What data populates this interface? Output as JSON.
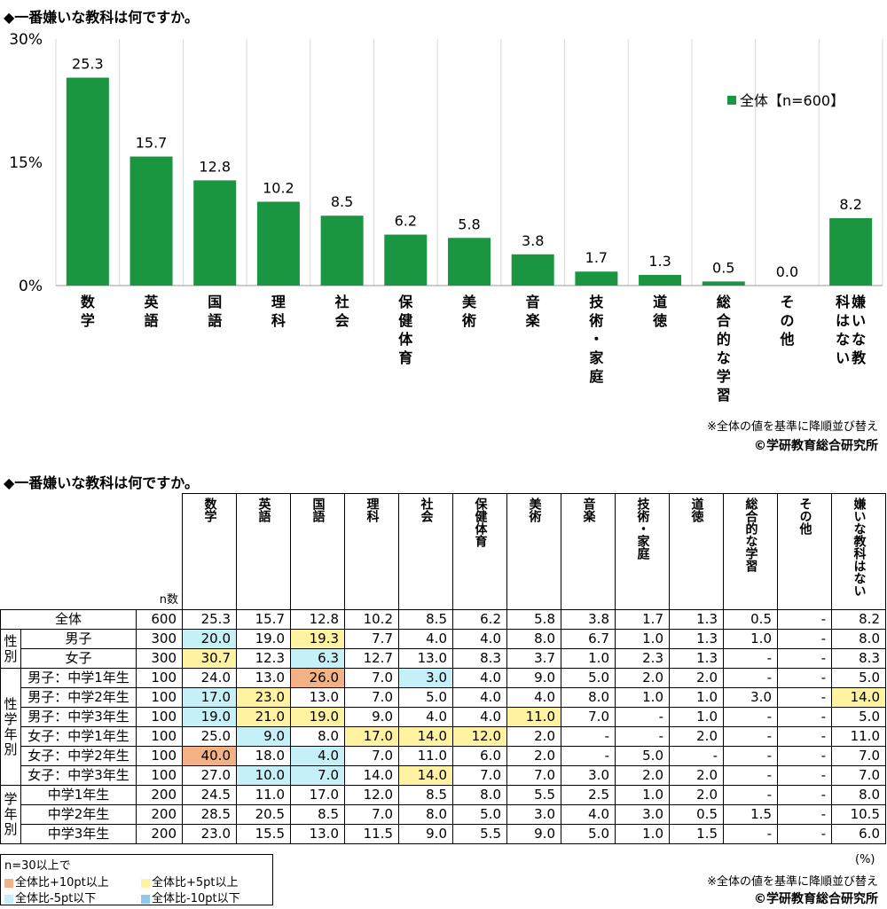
{
  "title1": "◆一番嫌いな教科は何ですか。",
  "title2": "◆一番嫌いな教科は何ですか。",
  "sort_note": "※全体の値を基準に降順並び替え",
  "copyright": "©学研教育総合研究所",
  "percent_unit": "(%)",
  "chart_data": {
    "type": "bar",
    "categories": [
      "数学",
      "英語",
      "国語",
      "理科",
      "社会",
      "保健体育",
      "美術",
      "音楽",
      "技術・家庭",
      "道徳",
      "総合的な学習",
      "その他",
      "嫌いな教科はない"
    ],
    "series": [
      {
        "name": "全体【n=600】",
        "values": [
          25.3,
          15.7,
          12.8,
          10.2,
          8.5,
          6.2,
          5.8,
          3.8,
          1.7,
          1.3,
          0.5,
          0.0,
          8.2
        ],
        "color": "#1a9641"
      }
    ],
    "value_labels": [
      "25.3",
      "15.7",
      "12.8",
      "10.2",
      "8.5",
      "6.2",
      "5.8",
      "3.8",
      "1.7",
      "1.3",
      "0.5",
      "0.0",
      "8.2"
    ],
    "yticks": [
      "0%",
      "15%",
      "30%"
    ],
    "ylim": [
      0,
      30
    ],
    "grid": "vertical separators",
    "legend": "top-right"
  },
  "table": {
    "n_header": "n数",
    "columns": [
      "数学",
      "英語",
      "国語",
      "理科",
      "社会",
      "保健体育",
      "美術",
      "音楽",
      "技術・家庭",
      "道徳",
      "総合的な学習",
      "その他",
      "嫌いな教科はない"
    ],
    "groups": [
      {
        "label": "",
        "rows": [
          {
            "label": "全体",
            "n": "600",
            "cells": [
              "25.3",
              "15.7",
              "12.8",
              "10.2",
              "8.5",
              "6.2",
              "5.8",
              "3.8",
              "1.7",
              "1.3",
              "0.5",
              "-",
              "8.2"
            ],
            "marks": [
              "",
              "",
              "",
              "",
              "",
              "",
              "",
              "",
              "",
              "",
              "",
              "",
              ""
            ]
          }
        ]
      },
      {
        "label": "性別",
        "rows": [
          {
            "label": "男子",
            "n": "300",
            "cells": [
              "20.0",
              "19.0",
              "19.3",
              "7.7",
              "4.0",
              "4.0",
              "8.0",
              "6.7",
              "1.0",
              "1.3",
              "1.0",
              "-",
              "8.0"
            ],
            "marks": [
              "lo5",
              "",
              "hi5",
              "",
              "",
              "",
              "",
              "",
              "",
              "",
              "",
              "",
              ""
            ]
          },
          {
            "label": "女子",
            "n": "300",
            "cells": [
              "30.7",
              "12.3",
              "6.3",
              "12.7",
              "13.0",
              "8.3",
              "3.7",
              "1.0",
              "2.3",
              "1.3",
              "-",
              "-",
              "8.3"
            ],
            "marks": [
              "hi5",
              "",
              "lo5",
              "",
              "",
              "",
              "",
              "",
              "",
              "",
              "",
              "",
              ""
            ]
          }
        ]
      },
      {
        "label": "性学年別",
        "rows": [
          {
            "label": "男子：中学1年生",
            "n": "100",
            "cells": [
              "24.0",
              "13.0",
              "26.0",
              "7.0",
              "3.0",
              "4.0",
              "9.0",
              "5.0",
              "2.0",
              "2.0",
              "-",
              "-",
              "5.0"
            ],
            "marks": [
              "",
              "",
              "hi10",
              "",
              "lo5",
              "",
              "",
              "",
              "",
              "",
              "",
              "",
              ""
            ]
          },
          {
            "label": "男子：中学2年生",
            "n": "100",
            "cells": [
              "17.0",
              "23.0",
              "13.0",
              "7.0",
              "5.0",
              "4.0",
              "4.0",
              "8.0",
              "1.0",
              "1.0",
              "3.0",
              "-",
              "14.0"
            ],
            "marks": [
              "lo5",
              "hi5",
              "",
              "",
              "",
              "",
              "",
              "",
              "",
              "",
              "",
              "",
              "hi5"
            ]
          },
          {
            "label": "男子：中学3年生",
            "n": "100",
            "cells": [
              "19.0",
              "21.0",
              "19.0",
              "9.0",
              "4.0",
              "4.0",
              "11.0",
              "7.0",
              "-",
              "1.0",
              "-",
              "-",
              "5.0"
            ],
            "marks": [
              "lo5",
              "hi5",
              "hi5",
              "",
              "",
              "",
              "hi5",
              "",
              "",
              "",
              "",
              "",
              ""
            ]
          },
          {
            "label": "女子：中学1年生",
            "n": "100",
            "cells": [
              "25.0",
              "9.0",
              "8.0",
              "17.0",
              "14.0",
              "12.0",
              "2.0",
              "-",
              "-",
              "2.0",
              "-",
              "-",
              "11.0"
            ],
            "marks": [
              "",
              "lo5",
              "",
              "hi5",
              "hi5",
              "hi5",
              "",
              "",
              "",
              "",
              "",
              "",
              ""
            ]
          },
          {
            "label": "女子：中学2年生",
            "n": "100",
            "cells": [
              "40.0",
              "18.0",
              "4.0",
              "7.0",
              "11.0",
              "6.0",
              "2.0",
              "-",
              "5.0",
              "-",
              "-",
              "-",
              "7.0"
            ],
            "marks": [
              "hi10",
              "",
              "lo5",
              "",
              "",
              "",
              "",
              "",
              "",
              "",
              "",
              "",
              ""
            ]
          },
          {
            "label": "女子：中学3年生",
            "n": "100",
            "cells": [
              "27.0",
              "10.0",
              "7.0",
              "14.0",
              "14.0",
              "7.0",
              "7.0",
              "3.0",
              "2.0",
              "2.0",
              "-",
              "-",
              "7.0"
            ],
            "marks": [
              "",
              "lo5",
              "lo5",
              "",
              "hi5",
              "",
              "",
              "",
              "",
              "",
              "",
              "",
              ""
            ]
          }
        ]
      },
      {
        "label": "学年別",
        "rows": [
          {
            "label": "中学1年生",
            "n": "200",
            "cells": [
              "24.5",
              "11.0",
              "17.0",
              "12.0",
              "8.5",
              "8.0",
              "5.5",
              "2.5",
              "1.0",
              "2.0",
              "-",
              "-",
              "8.0"
            ],
            "marks": [
              "",
              "",
              "",
              "",
              "",
              "",
              "",
              "",
              "",
              "",
              "",
              "",
              ""
            ]
          },
          {
            "label": "中学2年生",
            "n": "200",
            "cells": [
              "28.5",
              "20.5",
              "8.5",
              "7.0",
              "8.0",
              "5.0",
              "3.0",
              "4.0",
              "3.0",
              "0.5",
              "1.5",
              "-",
              "10.5"
            ],
            "marks": [
              "",
              "",
              "",
              "",
              "",
              "",
              "",
              "",
              "",
              "",
              "",
              "",
              ""
            ]
          },
          {
            "label": "中学3年生",
            "n": "200",
            "cells": [
              "23.0",
              "15.5",
              "13.0",
              "11.5",
              "9.0",
              "5.5",
              "9.0",
              "5.0",
              "1.0",
              "1.5",
              "-",
              "-",
              "6.0"
            ],
            "marks": [
              "",
              "",
              "",
              "",
              "",
              "",
              "",
              "",
              "",
              "",
              "",
              "",
              ""
            ]
          }
        ]
      }
    ]
  },
  "legend": {
    "title": "n=30以上で",
    "items": [
      {
        "label": "全体比+10pt以上",
        "color": "#f4b183"
      },
      {
        "label": "全体比+5pt以上",
        "color": "#fff2a0"
      },
      {
        "label": "全体比-5pt以下",
        "color": "#c6f0f7"
      },
      {
        "label": "全体比-10pt以下",
        "color": "#8ec9f0"
      }
    ]
  }
}
